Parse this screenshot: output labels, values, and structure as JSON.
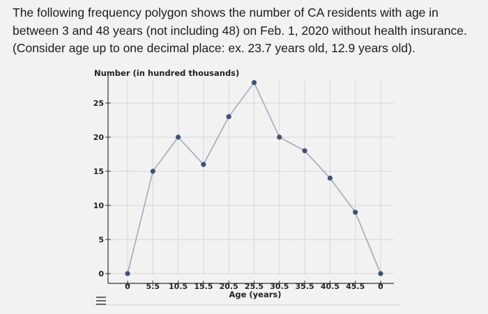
{
  "question": {
    "line1": "The following frequency polygon shows the number of CA residents with age in",
    "line2": "between 3 and 48 years (not including 48) on Feb. 1, 2020 without health insurance.",
    "line3": "(Consider age up to one decimal place: ex. 23.7 years old, 12.9 years old)."
  },
  "chart_data": {
    "type": "line",
    "ylabel": "Number (in hundred thousands)",
    "xlabel": "Age (years)",
    "x_tick_labels": [
      "0",
      "5.5",
      "10.5",
      "15.5",
      "20.5",
      "25.5",
      "30.5",
      "35.5",
      "40.5",
      "45.5",
      "0"
    ],
    "y_ticks": [
      0,
      5,
      10,
      15,
      20,
      25
    ],
    "ylim": [
      0,
      28
    ],
    "grid": true,
    "series": [
      {
        "values": [
          0,
          15,
          20,
          16,
          23,
          28,
          20,
          18,
          14,
          9,
          0
        ]
      }
    ],
    "colors": {
      "line": "#a9b0c2",
      "marker": "#3f5276",
      "grid": "#d6d6d6",
      "axis": "#333333"
    }
  },
  "toolbar": {
    "menu_icon": "hamburger-menu-icon"
  }
}
